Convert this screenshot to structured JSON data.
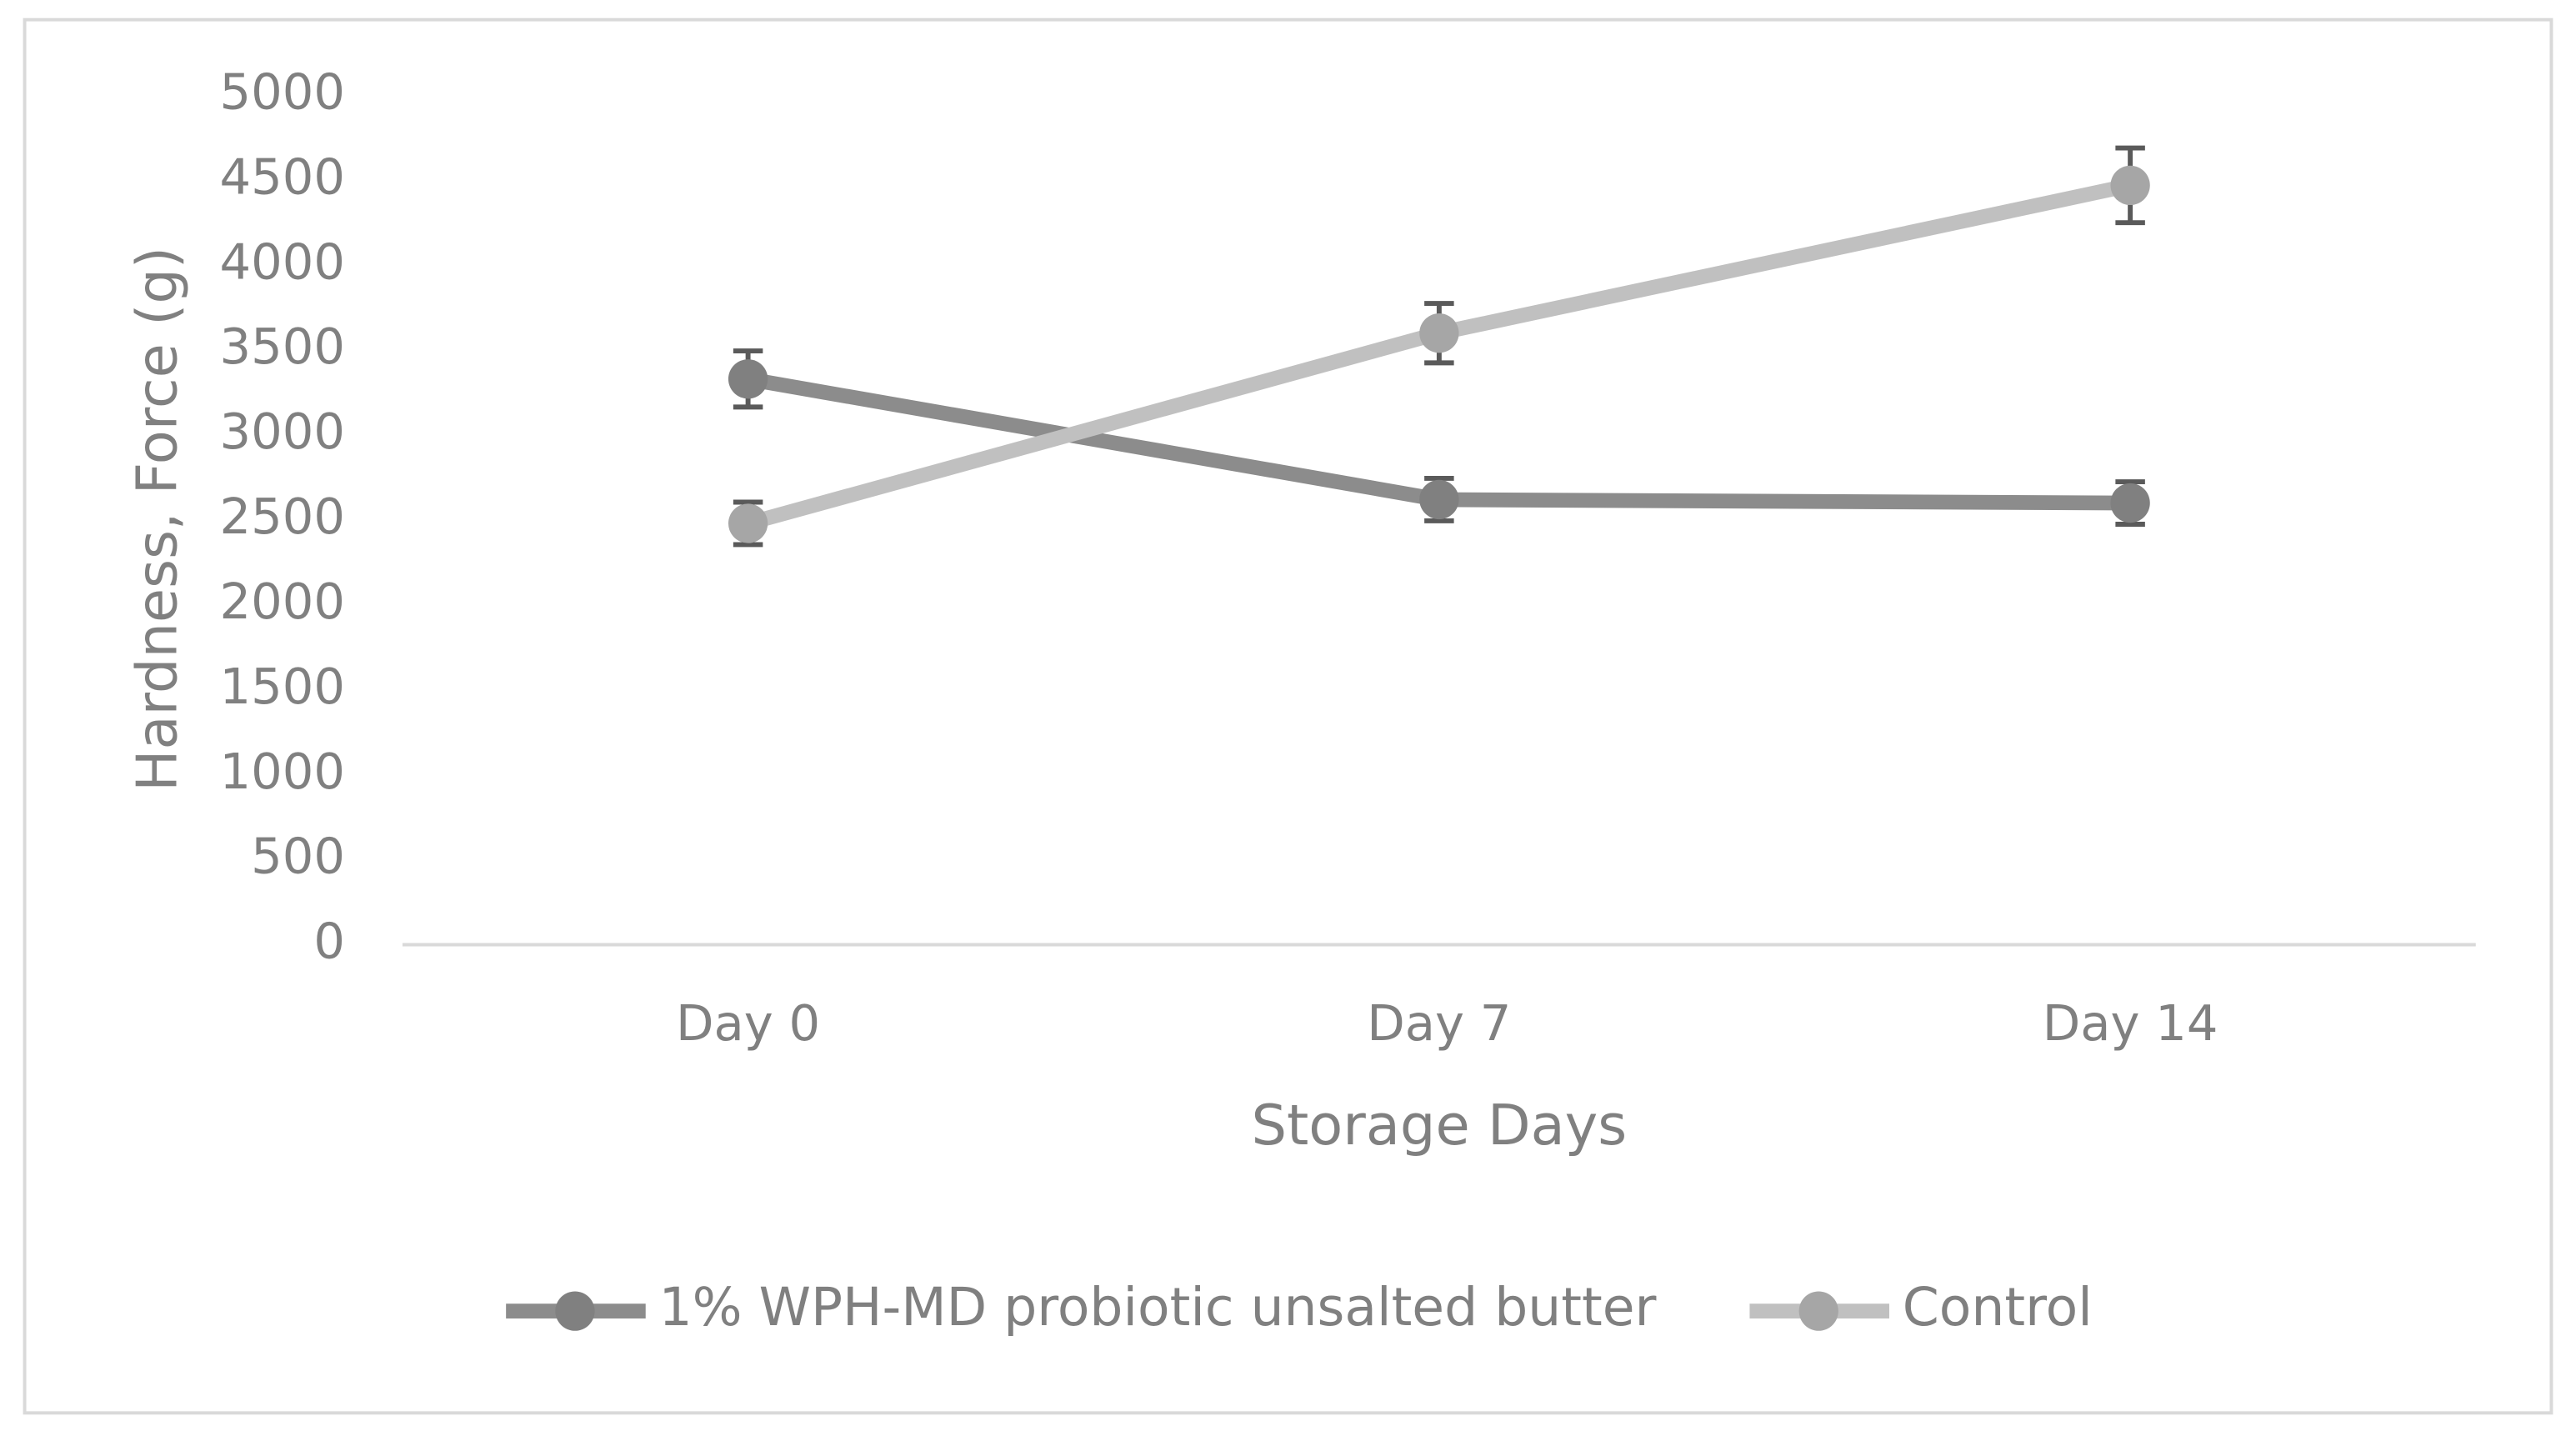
{
  "chart_data": {
    "type": "line",
    "x_label": "Storage Days",
    "y_label": "Hardness, Force (g)",
    "categories": [
      "Day 0",
      "Day 7",
      "Day 14"
    ],
    "series": [
      {
        "name": "1% WPH-MD probiotic unsalted butter",
        "color": "#8c8c8c",
        "marker_color": "#808080",
        "values": [
          3330,
          2620,
          2600
        ],
        "errors": [
          165,
          125,
          125
        ]
      },
      {
        "name": "Control",
        "color": "#c0c0c0",
        "marker_color": "#a6a6a6",
        "values": [
          2480,
          3600,
          4470
        ],
        "errors": [
          125,
          175,
          220
        ]
      }
    ],
    "ylim": [
      0,
      5000
    ],
    "yticks": [
      0,
      500,
      1000,
      1500,
      2000,
      2500,
      3000,
      3500,
      4000,
      4500,
      5000
    ],
    "error_bar_color": "#5a5a5a",
    "legend": "bottom"
  }
}
